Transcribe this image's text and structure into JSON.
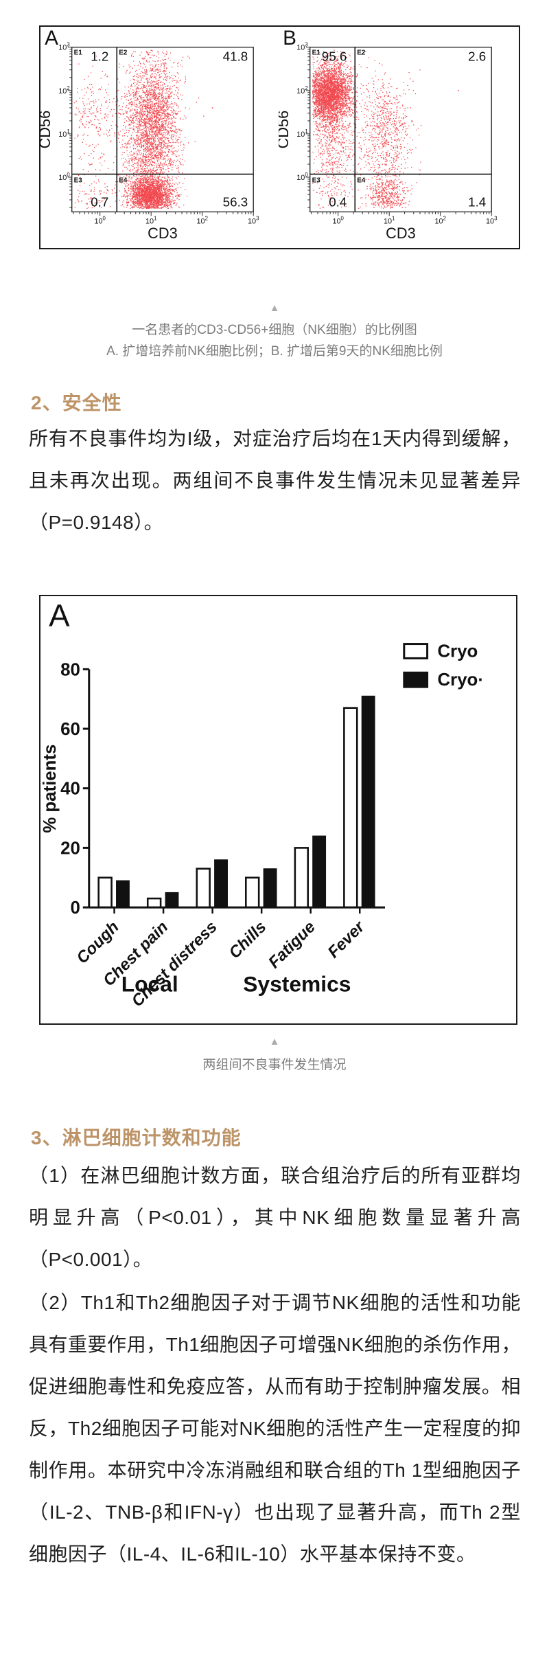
{
  "colors": {
    "accent": "#BD9368",
    "caption": "#7d7d7d",
    "triangle": "#ababab",
    "text": "#1f1f1f",
    "scatter_red": "#ee1c24",
    "chart_ink": "#111111"
  },
  "figure1": {
    "marker": "▲",
    "caption_line1": "一名患者的CD3-CD56+细胞（NK细胞）的比例图",
    "caption_line2": "A. 扩增培养前NK细胞比例；B. 扩增后第9天的NK细胞比例"
  },
  "section2": {
    "heading": "2、安全性",
    "paragraph": "所有不良事件均为I级，对症治疗后均在1天内得到缓解，且未再次出现。两组间不良事件发生情况未见显著差异（P=0.9148）。"
  },
  "figure2": {
    "marker": "▲",
    "caption": "两组间不良事件发生情况"
  },
  "section3": {
    "heading": "3、淋巴细胞计数和功能",
    "paragraph1": "（1）在淋巴细胞计数方面，联合组治疗后的所有亚群均明显升高（P<0.01），其中NK细胞数量显著升高（P<0.001）。",
    "paragraph2": "（2）Th1和Th2细胞因子对于调节NK细胞的活性和功能具有重要作用，Th1细胞因子可增强NK细胞的杀伤作用，促进细胞毒性和免疫应答，从而有助于控制肿瘤发展。相反，Th2细胞因子可能对NK细胞的活性产生一定程度的抑制作用。本研究中冷冻消融组和联合组的Th 1型细胞因子（IL-2、TNB-β和IFN-γ）也出现了显著升高，而Th 2型细胞因子（IL-4、IL-6和IL-10）水平基本保持不变。"
  },
  "chart_data": [
    {
      "type": "scatter",
      "subtype": "flow-cytometry",
      "host": "flowA",
      "panel_label": "A",
      "xlabel": "CD3",
      "ylabel": "CD56",
      "x_tick_exponents": [
        0,
        1,
        2,
        3
      ],
      "y_tick_exponents": [
        0,
        1,
        2,
        3
      ],
      "x_axis_scale": "log10, 10^0 to 10^3",
      "y_axis_scale": "log10, 10^0 to 10^3",
      "gate_x_log": 0.33,
      "gate_y_log": 0.07,
      "quadrants": [
        {
          "name": "E1",
          "value": "1.2"
        },
        {
          "name": "E2",
          "value": "41.8"
        },
        {
          "name": "E3",
          "value": "0.7"
        },
        {
          "name": "E4",
          "value": "56.3"
        }
      ],
      "clusters": [
        {
          "n": 200,
          "cx": -0.12,
          "sx": 0.27,
          "cy": 1.55,
          "sy": 0.42
        },
        {
          "n": 60,
          "cx": -0.15,
          "sx": 0.28,
          "cy": 0.55,
          "sy": 0.5
        },
        {
          "n": 2600,
          "cx": 1.02,
          "sx": 0.26,
          "cy": 1.35,
          "sy": 0.78
        },
        {
          "n": 350,
          "cx": 1.0,
          "sx": 0.3,
          "cy": 0.25,
          "sy": 0.35
        },
        {
          "n": 2300,
          "cx": 0.98,
          "sx": 0.22,
          "cy": -0.42,
          "sy": 0.2
        },
        {
          "n": 110,
          "cx": -0.15,
          "sx": 0.28,
          "cy": -0.42,
          "sy": 0.22
        }
      ],
      "outliers": [
        [
          2.2,
          1.6
        ],
        [
          1.75,
          2.75
        ]
      ]
    },
    {
      "type": "scatter",
      "subtype": "flow-cytometry",
      "host": "flowB",
      "panel_label": "B",
      "xlabel": "CD3",
      "ylabel": "CD56",
      "x_tick_exponents": [
        0,
        1,
        2,
        3
      ],
      "y_tick_exponents": [
        0,
        1,
        2,
        3
      ],
      "x_axis_scale": "log10, 10^0 to 10^3",
      "y_axis_scale": "log10, 10^0 to 10^3",
      "gate_x_log": 0.33,
      "gate_y_log": 0.07,
      "quadrants": [
        {
          "name": "E1",
          "value": "95.6"
        },
        {
          "name": "E2",
          "value": "2.6"
        },
        {
          "name": "E3",
          "value": "0.4"
        },
        {
          "name": "E4",
          "value": "1.4"
        }
      ],
      "clusters": [
        {
          "n": 3200,
          "cx": -0.18,
          "sx": 0.22,
          "cy": 1.95,
          "sy": 0.35
        },
        {
          "n": 600,
          "cx": -0.12,
          "sx": 0.24,
          "cy": 1.1,
          "sy": 0.55
        },
        {
          "n": 120,
          "cx": -0.1,
          "sx": 0.28,
          "cy": 0.1,
          "sy": 0.3
        },
        {
          "n": 650,
          "cx": 0.95,
          "sx": 0.26,
          "cy": 1.15,
          "sy": 0.6
        },
        {
          "n": 140,
          "cx": 0.95,
          "sx": 0.25,
          "cy": 0.2,
          "sy": 0.3
        },
        {
          "n": 430,
          "cx": 0.95,
          "sx": 0.2,
          "cy": -0.45,
          "sy": 0.2
        },
        {
          "n": 60,
          "cx": -0.12,
          "sx": 0.28,
          "cy": -0.42,
          "sy": 0.22
        }
      ],
      "outliers": [
        [
          2.35,
          2.0
        ]
      ]
    },
    {
      "type": "bar",
      "host": "barHost",
      "panel_label": "A",
      "ylabel": "% patients",
      "ylim": [
        0,
        80
      ],
      "yticks": [
        0,
        20,
        40,
        60,
        80
      ],
      "categories": [
        "Cough",
        "Chest pain",
        "Chest distress",
        "Chills",
        "Fatigue",
        "Fever"
      ],
      "series": [
        {
          "name": "Cryo",
          "fill": "open",
          "values": [
            10,
            3,
            13,
            10,
            20,
            67
          ]
        },
        {
          "name": "Cryo·",
          "fill": "solid",
          "values": [
            9,
            5,
            16,
            13,
            24,
            71
          ]
        }
      ],
      "groups": [
        {
          "label": "Local",
          "span": [
            0,
            2
          ]
        },
        {
          "label": "Systemics",
          "span": [
            3,
            5
          ]
        }
      ],
      "legend_position": "top-right",
      "grid": false
    }
  ]
}
